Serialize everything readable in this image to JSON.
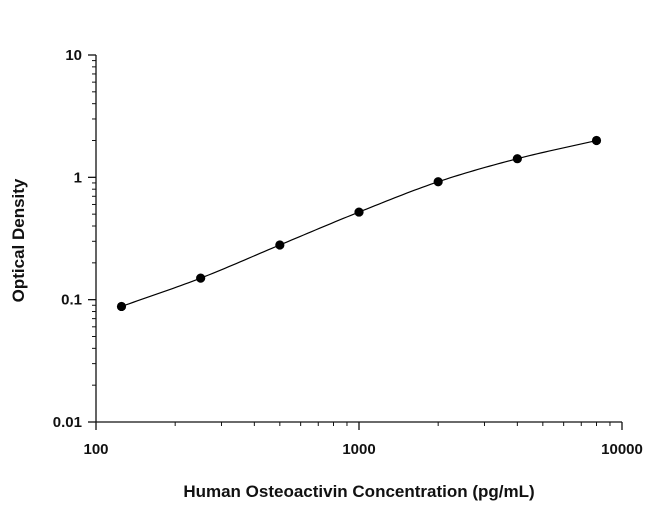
{
  "chart_data": {
    "type": "scatter",
    "xlabel": "Human Osteoactivin Concentration (pg/mL)",
    "ylabel": "Optical Density",
    "x_scale": "log",
    "y_scale": "log",
    "xlim": [
      100,
      10000
    ],
    "ylim": [
      0.01,
      10
    ],
    "x_tick_labels": [
      "100",
      "1000",
      "10000"
    ],
    "y_tick_labels": [
      "10",
      "1",
      "0.1",
      "0.01"
    ],
    "grid": false,
    "legend": "none",
    "series": [
      {
        "x": [
          125,
          250,
          500,
          1000,
          2000,
          4000,
          8000
        ],
        "y": [
          0.088,
          0.15,
          0.28,
          0.52,
          0.92,
          1.42,
          2.0
        ],
        "fit_curve": true
      }
    ],
    "colors": {
      "axis": "#111111",
      "marker": "#000000",
      "curve": "#000000"
    }
  }
}
